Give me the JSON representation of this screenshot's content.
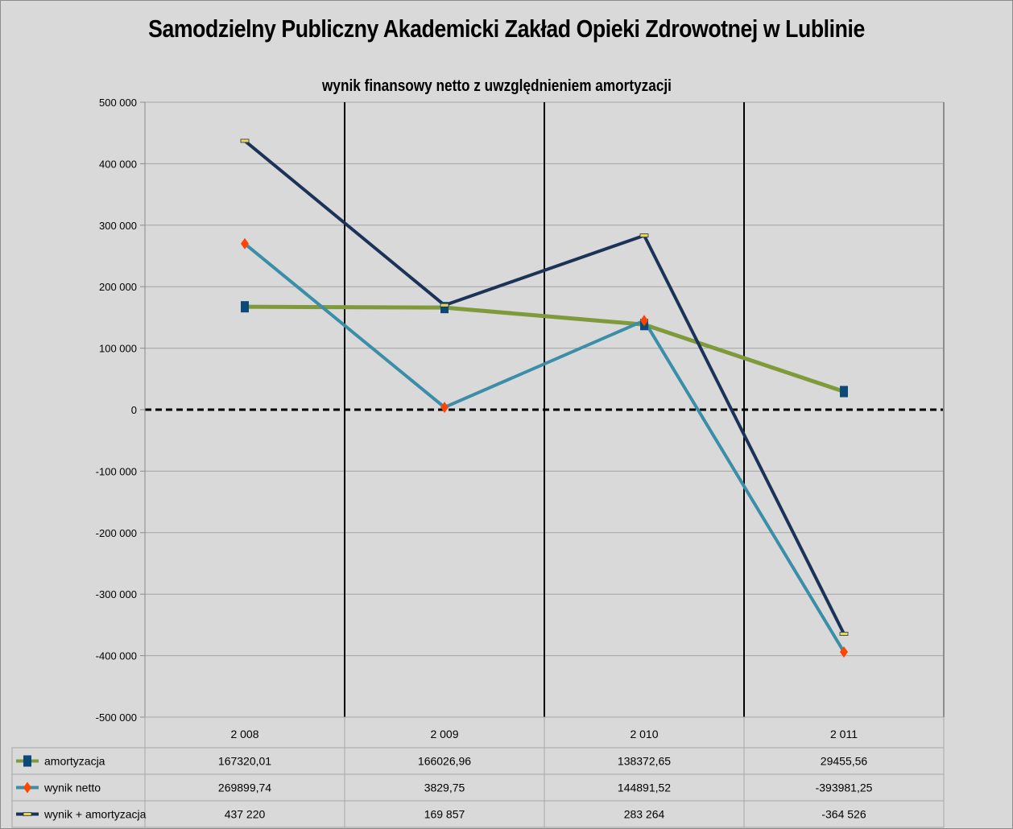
{
  "title": "Samodzielny Publiczny  Akademicki Zakład Opieki Zdrowotnej w Lublinie",
  "chart_data": {
    "type": "line",
    "title": "wynik finansowy netto z uwzględnieniem amortyzacji",
    "categories": [
      "2 008",
      "2 009",
      "2 010",
      "2 011"
    ],
    "ylim": [
      -500000,
      500000
    ],
    "yticks": [
      500000,
      400000,
      300000,
      200000,
      100000,
      0,
      -100000,
      -200000,
      -300000,
      -400000,
      -500000
    ],
    "ytick_labels": [
      "500 000",
      "400 000",
      "300 000",
      "200 000",
      "100 000",
      "0",
      "-100 000",
      "-200 000",
      "-300 000",
      "-400 000",
      "-500 000"
    ],
    "grid": true,
    "legend": "data-table-below",
    "series": [
      {
        "name": "amortyzacja",
        "values": [
          167320.01,
          166026.96,
          138372.65,
          29455.56
        ],
        "labels": [
          "167320,01",
          "166026,96",
          "138372,65",
          "29455,56"
        ],
        "color": "#7f9a3a",
        "marker": "square",
        "marker_color": "#0b4a78"
      },
      {
        "name": "wynik netto",
        "values": [
          269899.74,
          3829.75,
          144891.52,
          -393981.25
        ],
        "labels": [
          "269899,74",
          "3829,75",
          "144891,52",
          "-393981,25"
        ],
        "color": "#3a8ea8",
        "marker": "diamond",
        "marker_color": "#ff4500"
      },
      {
        "name": "wynik + amortyzacja",
        "values": [
          437220,
          169857,
          283264,
          -364526
        ],
        "labels": [
          "437 220",
          "169 857",
          "283 264",
          "-364 526"
        ],
        "color": "#1c3358",
        "marker": "dash",
        "marker_color": "#e8d84a"
      }
    ]
  }
}
